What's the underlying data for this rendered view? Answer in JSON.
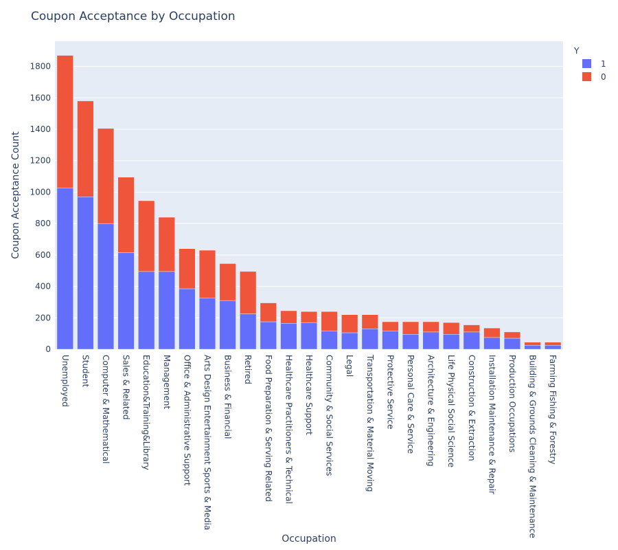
{
  "chart_data": {
    "type": "bar",
    "barmode": "stack",
    "title": "Coupon Acceptance by Occupation",
    "xlabel": "Occupation",
    "ylabel": "Coupon Acceptance Count",
    "ylim": [
      0,
      1960
    ],
    "yticks": [
      0,
      200,
      400,
      600,
      800,
      1000,
      1200,
      1400,
      1600,
      1800
    ],
    "grid": true,
    "legend": {
      "title": "Y",
      "position": "top-right"
    },
    "categories": [
      "Unemployed",
      "Student",
      "Computer & Mathematical",
      "Sales & Related",
      "Education&Training&Library",
      "Management",
      "Office & Administrative Support",
      "Arts Design Entertainment Sports & Media",
      "Business & Financial",
      "Retired",
      "Food Preparation & Serving Related",
      "Healthcare Practitioners & Technical",
      "Healthcare Support",
      "Community & Social Services",
      "Legal",
      "Transportation & Material Moving",
      "Protective Service",
      "Personal Care & Service",
      "Architecture & Engineering",
      "Life Physical Social Science",
      "Construction & Extraction",
      "Installation Maintenance & Repair",
      "Production Occupations",
      "Building & Grounds Cleaning & Maintenance",
      "Farming Fishing & Forestry"
    ],
    "series": [
      {
        "name": "1",
        "color": "#636efa",
        "values": [
          1025,
          970,
          800,
          615,
          495,
          495,
          385,
          325,
          310,
          225,
          175,
          165,
          170,
          115,
          105,
          130,
          115,
          95,
          110,
          95,
          110,
          75,
          70,
          25,
          25
        ]
      },
      {
        "name": "0",
        "color": "#ef553b",
        "values": [
          845,
          610,
          605,
          480,
          450,
          345,
          255,
          305,
          235,
          270,
          120,
          80,
          70,
          125,
          115,
          90,
          60,
          80,
          65,
          75,
          45,
          60,
          40,
          20,
          20
        ]
      }
    ]
  }
}
